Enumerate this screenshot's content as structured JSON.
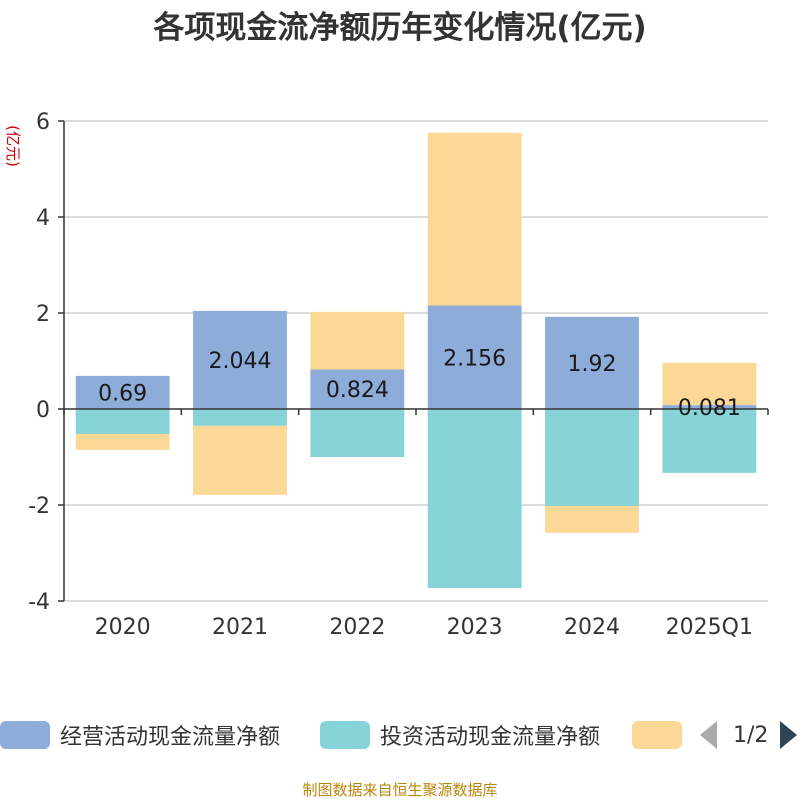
{
  "title": "各项现金流净额历年变化情况(亿元)",
  "source": "制图数据来自恒生聚源数据库",
  "colors": {
    "operating": "#8eacda",
    "investing": "#86d4d8",
    "financing": "#fcd896",
    "axis": "#333333",
    "grid": "#bbbbbb",
    "ylabel": "#cc0000",
    "pager_active": "#2f4554",
    "pager_inactive": "#aaaaaa",
    "source": "#b8860b"
  },
  "legend": {
    "items": [
      {
        "label": "经营活动现金流量净额",
        "color_key": "operating"
      },
      {
        "label": "投资活动现金流量净额",
        "color_key": "investing"
      },
      {
        "label": "",
        "color_key": "financing"
      }
    ],
    "page": "1/2"
  },
  "chart_data": {
    "type": "bar",
    "stacked": true,
    "ylabel": "(亿元)",
    "ylim": [
      -4,
      6
    ],
    "yticks": [
      -4,
      -2,
      0,
      2,
      4,
      6
    ],
    "grid": true,
    "legend_position": "bottom",
    "categories": [
      "2020",
      "2021",
      "2022",
      "2023",
      "2024",
      "2025Q1"
    ],
    "series": [
      {
        "name": "经营活动现金流量净额",
        "color_key": "operating",
        "values": [
          0.69,
          2.044,
          0.824,
          2.156,
          1.92,
          0.081
        ],
        "labels": [
          "0.69",
          "2.044",
          "0.824",
          "2.156",
          "1.92",
          "0.081"
        ]
      },
      {
        "name": "投资活动现金流量净额",
        "color_key": "investing",
        "values": [
          -0.52,
          -0.35,
          -1.0,
          -3.73,
          -2.02,
          -1.33
        ]
      },
      {
        "color_key": "financing",
        "values": [
          -0.33,
          -1.44,
          1.2,
          3.6,
          -0.56,
          0.88
        ]
      }
    ]
  }
}
